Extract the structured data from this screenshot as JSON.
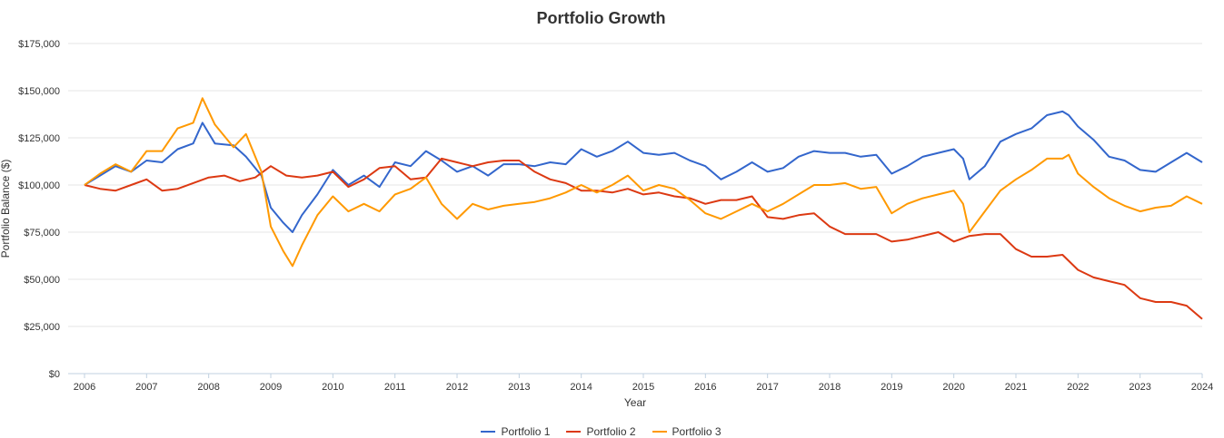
{
  "chart_data": {
    "type": "line",
    "title": "Portfolio Growth",
    "xlabel": "Year",
    "ylabel": "Portfolio Balance ($)",
    "x_ticks": [
      "2006",
      "2007",
      "2008",
      "2009",
      "2010",
      "2011",
      "2012",
      "2013",
      "2014",
      "2015",
      "2016",
      "2017",
      "2018",
      "2019",
      "2020",
      "2021",
      "2022",
      "2023",
      "2024"
    ],
    "y_ticks": [
      "$0",
      "$25,000",
      "$50,000",
      "$75,000",
      "$100,000",
      "$125,000",
      "$150,000",
      "$175,000"
    ],
    "ylim": [
      0,
      175000
    ],
    "xlim": [
      2006,
      2024
    ],
    "grid": true,
    "legend_position": "bottom",
    "series": [
      {
        "name": "Portfolio 1",
        "color": "#3366cc",
        "points": [
          [
            2006.0,
            100000
          ],
          [
            2006.25,
            105000
          ],
          [
            2006.5,
            110000
          ],
          [
            2006.75,
            107000
          ],
          [
            2007.0,
            113000
          ],
          [
            2007.25,
            112000
          ],
          [
            2007.5,
            119000
          ],
          [
            2007.75,
            122000
          ],
          [
            2007.9,
            133000
          ],
          [
            2008.1,
            122000
          ],
          [
            2008.4,
            121000
          ],
          [
            2008.6,
            115000
          ],
          [
            2008.85,
            105000
          ],
          [
            2009.0,
            88000
          ],
          [
            2009.2,
            80000
          ],
          [
            2009.35,
            75000
          ],
          [
            2009.5,
            84000
          ],
          [
            2009.75,
            95000
          ],
          [
            2010.0,
            108000
          ],
          [
            2010.25,
            100000
          ],
          [
            2010.5,
            105000
          ],
          [
            2010.75,
            99000
          ],
          [
            2011.0,
            112000
          ],
          [
            2011.25,
            110000
          ],
          [
            2011.5,
            118000
          ],
          [
            2011.75,
            113000
          ],
          [
            2012.0,
            107000
          ],
          [
            2012.25,
            110000
          ],
          [
            2012.5,
            105000
          ],
          [
            2012.75,
            111000
          ],
          [
            2013.0,
            111000
          ],
          [
            2013.25,
            110000
          ],
          [
            2013.5,
            112000
          ],
          [
            2013.75,
            111000
          ],
          [
            2014.0,
            119000
          ],
          [
            2014.25,
            115000
          ],
          [
            2014.5,
            118000
          ],
          [
            2014.75,
            123000
          ],
          [
            2015.0,
            117000
          ],
          [
            2015.25,
            116000
          ],
          [
            2015.5,
            117000
          ],
          [
            2015.75,
            113000
          ],
          [
            2016.0,
            110000
          ],
          [
            2016.25,
            103000
          ],
          [
            2016.5,
            107000
          ],
          [
            2016.75,
            112000
          ],
          [
            2017.0,
            107000
          ],
          [
            2017.25,
            109000
          ],
          [
            2017.5,
            115000
          ],
          [
            2017.75,
            118000
          ],
          [
            2018.0,
            117000
          ],
          [
            2018.25,
            117000
          ],
          [
            2018.5,
            115000
          ],
          [
            2018.75,
            116000
          ],
          [
            2019.0,
            106000
          ],
          [
            2019.25,
            110000
          ],
          [
            2019.5,
            115000
          ],
          [
            2019.75,
            117000
          ],
          [
            2020.0,
            119000
          ],
          [
            2020.15,
            114000
          ],
          [
            2020.25,
            103000
          ],
          [
            2020.5,
            110000
          ],
          [
            2020.75,
            123000
          ],
          [
            2021.0,
            127000
          ],
          [
            2021.25,
            130000
          ],
          [
            2021.5,
            137000
          ],
          [
            2021.75,
            139000
          ],
          [
            2021.85,
            137000
          ],
          [
            2022.0,
            131000
          ],
          [
            2022.25,
            124000
          ],
          [
            2022.5,
            115000
          ],
          [
            2022.75,
            113000
          ],
          [
            2023.0,
            108000
          ],
          [
            2023.25,
            107000
          ],
          [
            2023.5,
            112000
          ],
          [
            2023.75,
            117000
          ],
          [
            2024.0,
            112000
          ]
        ]
      },
      {
        "name": "Portfolio 2",
        "color": "#dc3912",
        "points": [
          [
            2006.0,
            100000
          ],
          [
            2006.25,
            98000
          ],
          [
            2006.5,
            97000
          ],
          [
            2006.75,
            100000
          ],
          [
            2007.0,
            103000
          ],
          [
            2007.25,
            97000
          ],
          [
            2007.5,
            98000
          ],
          [
            2007.75,
            101000
          ],
          [
            2008.0,
            104000
          ],
          [
            2008.25,
            105000
          ],
          [
            2008.5,
            102000
          ],
          [
            2008.75,
            104000
          ],
          [
            2009.0,
            110000
          ],
          [
            2009.25,
            105000
          ],
          [
            2009.5,
            104000
          ],
          [
            2009.75,
            105000
          ],
          [
            2010.0,
            107000
          ],
          [
            2010.25,
            99000
          ],
          [
            2010.5,
            103000
          ],
          [
            2010.75,
            109000
          ],
          [
            2011.0,
            110000
          ],
          [
            2011.25,
            103000
          ],
          [
            2011.5,
            104000
          ],
          [
            2011.75,
            114000
          ],
          [
            2012.0,
            112000
          ],
          [
            2012.25,
            110000
          ],
          [
            2012.5,
            112000
          ],
          [
            2012.75,
            113000
          ],
          [
            2013.0,
            113000
          ],
          [
            2013.25,
            107000
          ],
          [
            2013.5,
            103000
          ],
          [
            2013.75,
            101000
          ],
          [
            2014.0,
            97000
          ],
          [
            2014.25,
            97000
          ],
          [
            2014.5,
            96000
          ],
          [
            2014.75,
            98000
          ],
          [
            2015.0,
            95000
          ],
          [
            2015.25,
            96000
          ],
          [
            2015.5,
            94000
          ],
          [
            2015.75,
            93000
          ],
          [
            2016.0,
            90000
          ],
          [
            2016.25,
            92000
          ],
          [
            2016.5,
            92000
          ],
          [
            2016.75,
            94000
          ],
          [
            2017.0,
            83000
          ],
          [
            2017.25,
            82000
          ],
          [
            2017.5,
            84000
          ],
          [
            2017.75,
            85000
          ],
          [
            2018.0,
            78000
          ],
          [
            2018.25,
            74000
          ],
          [
            2018.5,
            74000
          ],
          [
            2018.75,
            74000
          ],
          [
            2019.0,
            70000
          ],
          [
            2019.25,
            71000
          ],
          [
            2019.5,
            73000
          ],
          [
            2019.75,
            75000
          ],
          [
            2020.0,
            70000
          ],
          [
            2020.25,
            73000
          ],
          [
            2020.5,
            74000
          ],
          [
            2020.75,
            74000
          ],
          [
            2021.0,
            66000
          ],
          [
            2021.25,
            62000
          ],
          [
            2021.5,
            62000
          ],
          [
            2021.75,
            63000
          ],
          [
            2022.0,
            55000
          ],
          [
            2022.25,
            51000
          ],
          [
            2022.5,
            49000
          ],
          [
            2022.75,
            47000
          ],
          [
            2023.0,
            40000
          ],
          [
            2023.25,
            38000
          ],
          [
            2023.5,
            38000
          ],
          [
            2023.75,
            36000
          ],
          [
            2024.0,
            29000
          ]
        ]
      },
      {
        "name": "Portfolio 3",
        "color": "#ff9900",
        "points": [
          [
            2006.0,
            100000
          ],
          [
            2006.25,
            106000
          ],
          [
            2006.5,
            111000
          ],
          [
            2006.75,
            107000
          ],
          [
            2007.0,
            118000
          ],
          [
            2007.25,
            118000
          ],
          [
            2007.5,
            130000
          ],
          [
            2007.75,
            133000
          ],
          [
            2007.9,
            146000
          ],
          [
            2008.1,
            132000
          ],
          [
            2008.4,
            120000
          ],
          [
            2008.6,
            127000
          ],
          [
            2008.85,
            107000
          ],
          [
            2009.0,
            78000
          ],
          [
            2009.2,
            65000
          ],
          [
            2009.35,
            57000
          ],
          [
            2009.5,
            68000
          ],
          [
            2009.75,
            84000
          ],
          [
            2010.0,
            94000
          ],
          [
            2010.25,
            86000
          ],
          [
            2010.5,
            90000
          ],
          [
            2010.75,
            86000
          ],
          [
            2011.0,
            95000
          ],
          [
            2011.25,
            98000
          ],
          [
            2011.5,
            104000
          ],
          [
            2011.75,
            90000
          ],
          [
            2012.0,
            82000
          ],
          [
            2012.25,
            90000
          ],
          [
            2012.5,
            87000
          ],
          [
            2012.75,
            89000
          ],
          [
            2013.0,
            90000
          ],
          [
            2013.25,
            91000
          ],
          [
            2013.5,
            93000
          ],
          [
            2013.75,
            96000
          ],
          [
            2014.0,
            100000
          ],
          [
            2014.25,
            96000
          ],
          [
            2014.5,
            100000
          ],
          [
            2014.75,
            105000
          ],
          [
            2015.0,
            97000
          ],
          [
            2015.25,
            100000
          ],
          [
            2015.5,
            98000
          ],
          [
            2015.75,
            92000
          ],
          [
            2016.0,
            85000
          ],
          [
            2016.25,
            82000
          ],
          [
            2016.5,
            86000
          ],
          [
            2016.75,
            90000
          ],
          [
            2017.0,
            86000
          ],
          [
            2017.25,
            90000
          ],
          [
            2017.5,
            95000
          ],
          [
            2017.75,
            100000
          ],
          [
            2018.0,
            100000
          ],
          [
            2018.25,
            101000
          ],
          [
            2018.5,
            98000
          ],
          [
            2018.75,
            99000
          ],
          [
            2019.0,
            85000
          ],
          [
            2019.25,
            90000
          ],
          [
            2019.5,
            93000
          ],
          [
            2019.75,
            95000
          ],
          [
            2020.0,
            97000
          ],
          [
            2020.15,
            90000
          ],
          [
            2020.25,
            75000
          ],
          [
            2020.5,
            86000
          ],
          [
            2020.75,
            97000
          ],
          [
            2021.0,
            103000
          ],
          [
            2021.25,
            108000
          ],
          [
            2021.5,
            114000
          ],
          [
            2021.75,
            114000
          ],
          [
            2021.85,
            116000
          ],
          [
            2022.0,
            106000
          ],
          [
            2022.25,
            99000
          ],
          [
            2022.5,
            93000
          ],
          [
            2022.75,
            89000
          ],
          [
            2023.0,
            86000
          ],
          [
            2023.25,
            88000
          ],
          [
            2023.5,
            89000
          ],
          [
            2023.75,
            94000
          ],
          [
            2024.0,
            90000
          ]
        ]
      }
    ]
  }
}
